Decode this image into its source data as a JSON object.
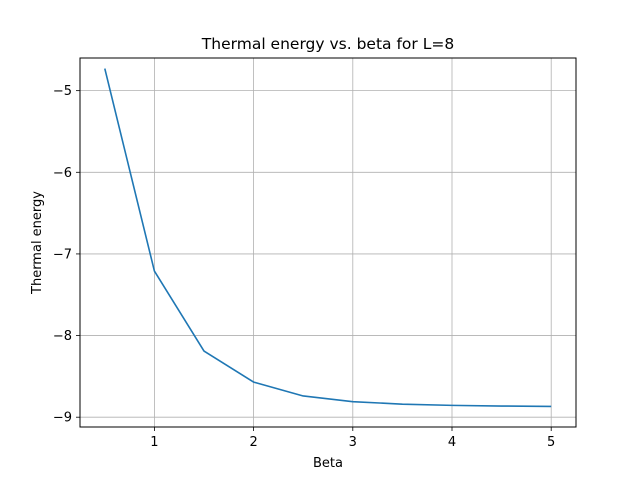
{
  "chart_data": {
    "type": "line",
    "title": "Thermal energy vs. beta for L=8",
    "xlabel": "Beta",
    "ylabel": "Thermal energy",
    "xlim": [
      0.25,
      5.25
    ],
    "ylim": [
      -9.12,
      -4.6
    ],
    "xticks": [
      1,
      2,
      3,
      4,
      5
    ],
    "yticks": [
      -9,
      -8,
      -7,
      -6,
      -5
    ],
    "xtick_labels": [
      "1",
      "2",
      "3",
      "4",
      "5"
    ],
    "ytick_labels": [
      "−9",
      "−8",
      "−7",
      "−6",
      "−5"
    ],
    "grid": true,
    "series": [
      {
        "color": "#1f77b4",
        "x": [
          0.5,
          1.0,
          1.5,
          2.0,
          2.5,
          3.0,
          3.5,
          4.0,
          4.5,
          5.0
        ],
        "values": [
          -4.73,
          -7.21,
          -8.19,
          -8.57,
          -8.74,
          -8.81,
          -8.84,
          -8.855,
          -8.863,
          -8.868
        ]
      }
    ]
  }
}
